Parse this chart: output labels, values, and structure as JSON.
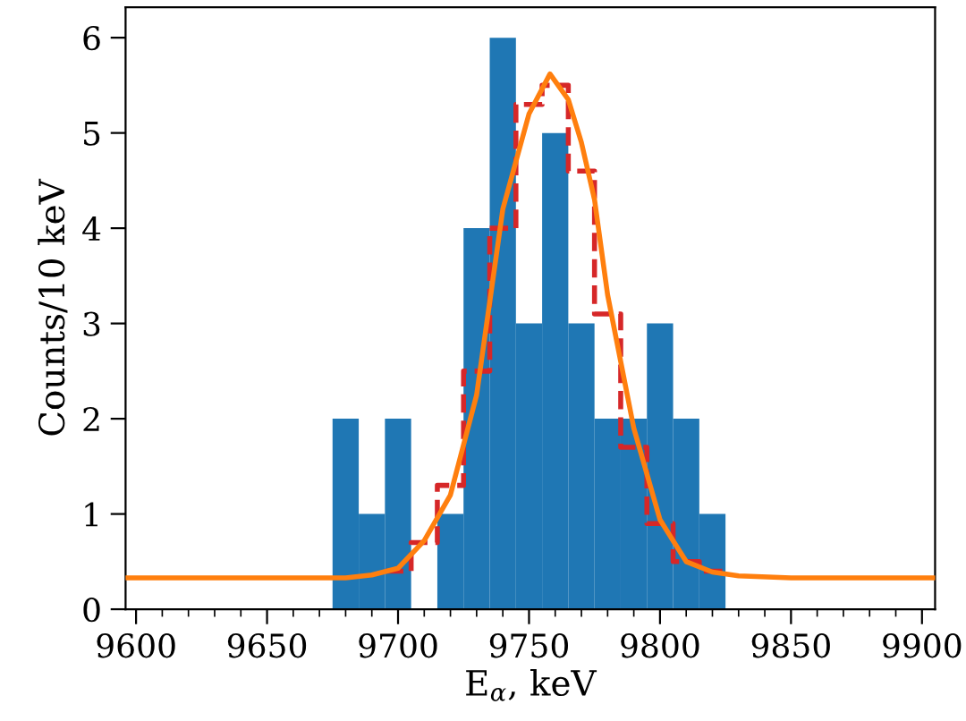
{
  "chart_data": {
    "type": "histogram",
    "xlabel": "E$_{α}$, keV",
    "ylabel": "Counts/10 keV",
    "bins": [
      9675,
      9685,
      9695,
      9705,
      9715,
      9725,
      9735,
      9745,
      9755,
      9765,
      9775,
      9785,
      9795,
      9805,
      9815,
      9825
    ],
    "values": [
      2,
      1,
      2,
      0,
      1,
      4,
      6,
      3,
      5,
      3,
      2,
      2,
      3,
      2,
      1
    ],
    "color": "#1f77b4",
    "series": [
      {
        "type": "step",
        "x": [
          9695,
          9705,
          9715,
          9725,
          9735,
          9745,
          9755,
          9765,
          9775,
          9785,
          9795,
          9805,
          9815,
          9825
        ],
        "values": [
          0.4,
          0.7,
          1.3,
          2.5,
          4.0,
          5.3,
          5.5,
          4.6,
          3.1,
          1.7,
          0.9,
          0.5,
          0.4,
          0.4
        ],
        "color": "#d62728",
        "line_style": "dashed"
      },
      {
        "type": "line",
        "x": [
          9596,
          9680,
          9690,
          9700,
          9710,
          9720,
          9730,
          9740,
          9750,
          9758,
          9765,
          9770,
          9775,
          9780,
          9790,
          9800,
          9810,
          9820,
          9830,
          9850,
          9905
        ],
        "values": [
          0.33,
          0.33,
          0.36,
          0.43,
          0.72,
          1.2,
          2.25,
          4.2,
          5.2,
          5.62,
          5.35,
          4.9,
          4.3,
          3.3,
          1.9,
          0.94,
          0.5,
          0.39,
          0.35,
          0.33,
          0.33
        ],
        "color": "#ff7f0e",
        "line_style": "solid"
      }
    ],
    "xlim": [
      9596,
      9905
    ],
    "ylim": [
      0,
      6.32
    ],
    "xticks": [
      9600,
      {
        "value": 9610,
        "label": null
      },
      {
        "value": 9620,
        "label": null
      },
      {
        "value": 9630,
        "label": null
      },
      {
        "value": 9640,
        "label": null
      },
      9650,
      {
        "value": 9660,
        "label": null
      },
      {
        "value": 9670,
        "label": null
      },
      {
        "value": 9680,
        "label": null
      },
      {
        "value": 9690,
        "label": null
      },
      9700,
      {
        "value": 9710,
        "label": null
      },
      {
        "value": 9720,
        "label": null
      },
      {
        "value": 9730,
        "label": null
      },
      {
        "value": 9740,
        "label": null
      },
      9750,
      {
        "value": 9760,
        "label": null
      },
      {
        "value": 9770,
        "label": null
      },
      {
        "value": 9780,
        "label": null
      },
      {
        "value": 9790,
        "label": null
      },
      9800,
      {
        "value": 9810,
        "label": null
      },
      {
        "value": 9820,
        "label": null
      },
      {
        "value": 9830,
        "label": null
      },
      {
        "value": 9840,
        "label": null
      },
      9850,
      {
        "value": 9860,
        "label": null
      },
      {
        "value": 9870,
        "label": null
      },
      {
        "value": 9880,
        "label": null
      },
      {
        "value": 9890,
        "label": null
      },
      9900
    ],
    "yticks": [
      0,
      1,
      2,
      3,
      4,
      5,
      6
    ],
    "grid": false
  }
}
